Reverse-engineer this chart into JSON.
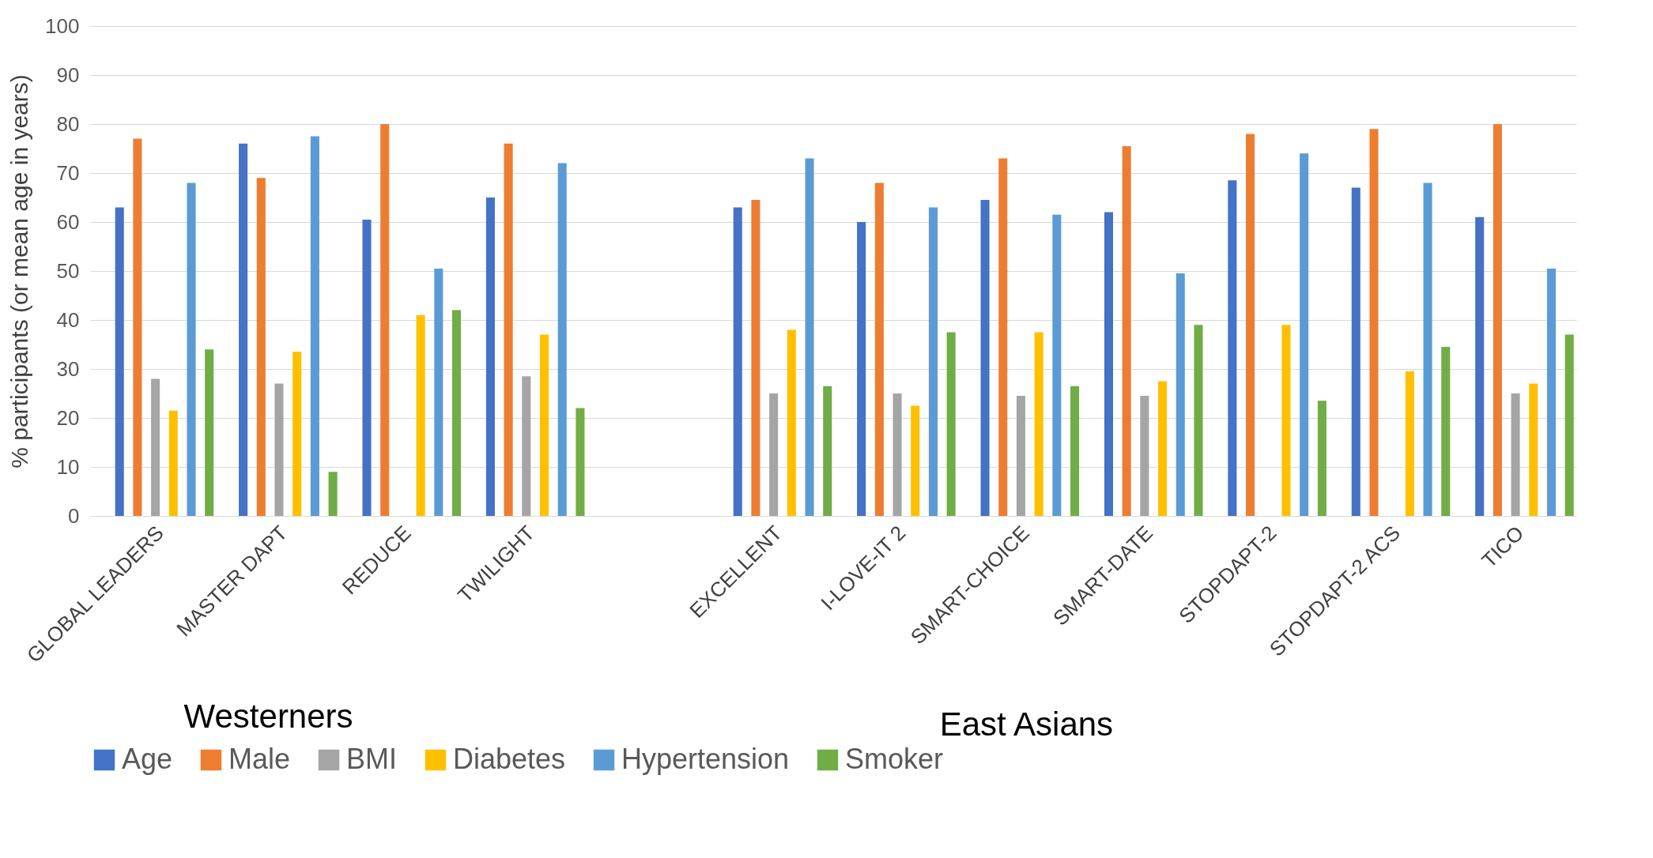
{
  "chart_data": {
    "type": "bar",
    "ylabel": "% participants (or mean age in years)",
    "categories": [
      "GLOBAL LEADERS",
      "MASTER DAPT",
      "REDUCE",
      "TWILIGHT",
      null,
      "EXCELLENT",
      "I-LOVE-IT 2",
      "SMART-CHOICE",
      "SMART-DATE",
      "STOPDAPT-2",
      "STOPDAPT-2 ACS",
      "TICO"
    ],
    "series": [
      {
        "name": "Age",
        "color": "#4472c4",
        "values": [
          63,
          76,
          60.5,
          65,
          null,
          63,
          60,
          64.5,
          62,
          68.5,
          67,
          61
        ]
      },
      {
        "name": "Male",
        "color": "#ed7d31",
        "values": [
          77,
          69,
          80,
          76,
          null,
          64.5,
          68,
          73,
          75.5,
          78,
          79,
          80
        ]
      },
      {
        "name": "BMI",
        "color": "#a5a5a5",
        "values": [
          28,
          27,
          null,
          28.5,
          null,
          25,
          25,
          24.5,
          24.5,
          null,
          null,
          25
        ]
      },
      {
        "name": "Diabetes",
        "color": "#ffc000",
        "values": [
          21.5,
          33.5,
          41,
          37,
          null,
          38,
          22.5,
          37.5,
          27.5,
          39,
          29.5,
          27
        ]
      },
      {
        "name": "Hypertension",
        "color": "#5b9bd5",
        "values": [
          68,
          77.5,
          50.5,
          72,
          null,
          73,
          63,
          61.5,
          49.5,
          74,
          68,
          50.5
        ]
      },
      {
        "name": "Smoker",
        "color": "#70ad47",
        "values": [
          34,
          9,
          42,
          22,
          null,
          26.5,
          37.5,
          26.5,
          39,
          23.5,
          34.5,
          37
        ]
      }
    ],
    "ylim": [
      0,
      100
    ],
    "yticks": [
      0,
      10,
      20,
      30,
      40,
      50,
      60,
      70,
      80,
      90,
      100
    ],
    "grid": "y",
    "legend": "bottom",
    "annotations": [
      "Westerners",
      "East Asians"
    ]
  }
}
